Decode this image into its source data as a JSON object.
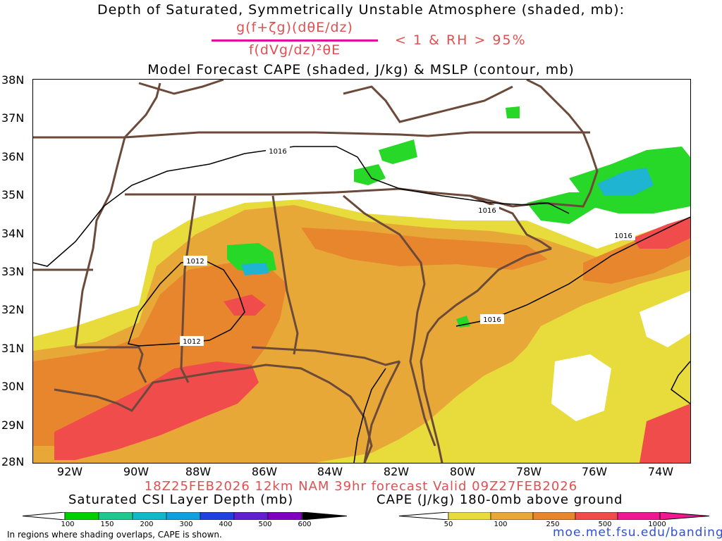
{
  "header": {
    "title": "Depth of Saturated, Symmetrically Unstable Atmosphere (shaded, mb):",
    "equation_numerator": "g(f+ζg)(dθE/dz)",
    "equation_denominator": "f(dVg/dz)²θE",
    "equation_condition": "< 1 & RH > 95%",
    "subtitle": "Model Forecast CAPE (shaded, J/kg) & MSLP (contour, mb)"
  },
  "map": {
    "lat_labels": [
      "38N",
      "37N",
      "36N",
      "35N",
      "34N",
      "33N",
      "32N",
      "31N",
      "30N",
      "29N",
      "28N"
    ],
    "lon_labels": [
      "92W",
      "90W",
      "88W",
      "86W",
      "84W",
      "82W",
      "80W",
      "78W",
      "76W",
      "74W"
    ],
    "contour_labels": [
      "1016",
      "1012",
      "1012",
      "1016",
      "1016",
      "1016"
    ],
    "colors": {
      "state_border": "#6b4a3a",
      "contour": "#000000",
      "cape_yellow": "#e8dc3c",
      "cape_orange_light": "#e8a838",
      "cape_orange": "#e8862e",
      "cape_red": "#f04c4c",
      "csi_green": "#28d828",
      "csi_teal": "#1ec8a0",
      "csi_cyan": "#1eb4d2"
    }
  },
  "footer": {
    "valid_line": "18Z25FEB2026 12km NAM 39hr forecast Valid 09Z27FEB2026",
    "csi_colorbar_title": "Saturated CSI Layer Depth (mb)",
    "cape_colorbar_title": "CAPE (J/kg) 180-0mb above ground",
    "csi_ticks": [
      "100",
      "150",
      "200",
      "300",
      "400",
      "500",
      "600"
    ],
    "cape_ticks": [
      "50",
      "100",
      "250",
      "500",
      "1000"
    ],
    "csi_colors": [
      "#00d000",
      "#20c890",
      "#10b8c8",
      "#10a0e0",
      "#2040e0",
      "#6020d0",
      "#8000c0"
    ],
    "cape_colors": [
      "#e8dc3c",
      "#e8a838",
      "#e8862e",
      "#f04c4c",
      "#f01890"
    ],
    "footnote": "In regions where shading overlaps, CAPE is shown.",
    "url": "moe.met.fsu.edu/banding"
  },
  "chart_data": {
    "type": "heatmap",
    "title": "Depth of Saturated, Symmetrically Unstable Atmosphere (shaded, mb)",
    "subtitle": "Model Forecast CAPE (shaded, J/kg) & MSLP (contour, mb)",
    "x_range_deg_west": [
      93,
      73
    ],
    "y_range_deg_north": [
      28,
      38
    ],
    "xticks": [
      "92W",
      "90W",
      "88W",
      "86W",
      "84W",
      "82W",
      "80W",
      "78W",
      "76W",
      "74W"
    ],
    "yticks": [
      "38N",
      "37N",
      "36N",
      "35N",
      "34N",
      "33N",
      "32N",
      "31N",
      "30N",
      "29N",
      "28N"
    ],
    "mslp_contour_levels_mb": [
      1012,
      1016
    ],
    "csi_levels_mb": [
      100,
      150,
      200,
      300,
      400,
      500,
      600
    ],
    "cape_levels_jkg": [
      50,
      100,
      250,
      500,
      1000
    ]
  }
}
